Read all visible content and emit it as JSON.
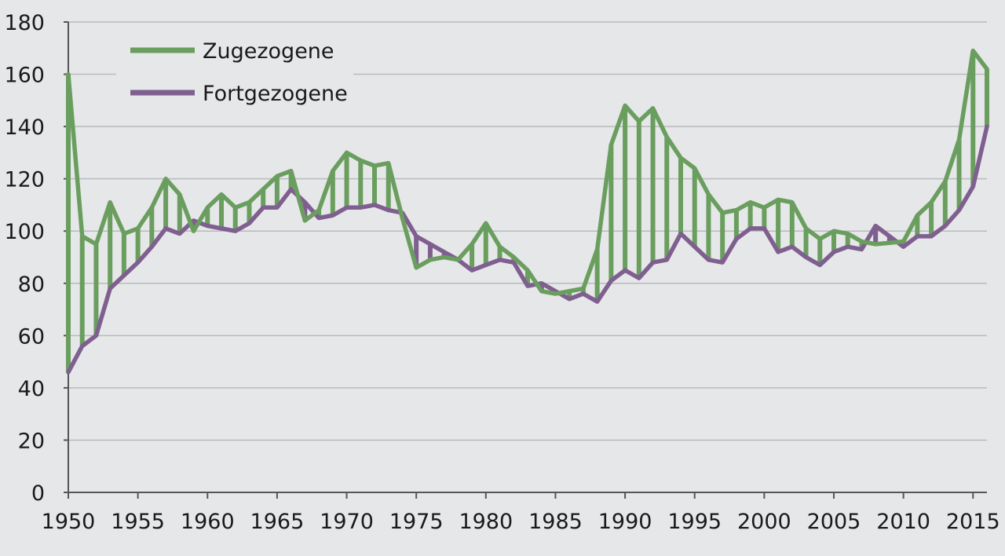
{
  "chart_data": {
    "type": "line",
    "title": "",
    "xlabel": "",
    "ylabel": "",
    "xlim": [
      1950,
      2016
    ],
    "ylim": [
      0,
      180
    ],
    "grid": true,
    "legend_position": "top-left",
    "x_ticks": [
      "1950",
      "1955",
      "1960",
      "1965",
      "1970",
      "1975",
      "1980",
      "1985",
      "1990",
      "1995",
      "2000",
      "2005",
      "2010",
      "2015"
    ],
    "y_ticks": [
      "0",
      "20",
      "40",
      "60",
      "80",
      "100",
      "120",
      "140",
      "160",
      "180"
    ],
    "x": [
      1950,
      1951,
      1952,
      1953,
      1954,
      1955,
      1956,
      1957,
      1958,
      1959,
      1960,
      1961,
      1962,
      1963,
      1964,
      1965,
      1966,
      1967,
      1968,
      1969,
      1970,
      1971,
      1972,
      1973,
      1974,
      1975,
      1976,
      1977,
      1978,
      1979,
      1980,
      1981,
      1982,
      1983,
      1984,
      1985,
      1986,
      1987,
      1988,
      1989,
      1990,
      1991,
      1992,
      1993,
      1994,
      1995,
      1996,
      1997,
      1998,
      1999,
      2000,
      2001,
      2002,
      2003,
      2004,
      2005,
      2006,
      2007,
      2008,
      2009,
      2010,
      2011,
      2012,
      2013,
      2014,
      2015,
      2016
    ],
    "series": [
      {
        "name": "Zugezogene",
        "color": "#6a9e5f",
        "values": [
          160,
          98,
          95,
          111,
          99,
          101,
          109,
          120,
          114,
          100,
          109,
          114,
          109,
          111,
          116,
          121,
          123,
          104,
          108,
          123,
          130,
          127,
          125,
          126,
          105,
          86,
          89,
          90,
          89,
          95,
          103,
          94,
          90,
          85,
          77,
          76,
          77,
          78,
          93,
          133,
          148,
          142,
          147,
          136,
          128,
          124,
          114,
          107,
          108,
          111,
          109,
          112,
          111,
          101,
          97,
          100,
          99,
          96,
          95,
          95.5,
          96,
          106,
          111,
          119,
          135,
          169,
          162
        ]
      },
      {
        "name": "Fortgezogene",
        "color": "#7f5f8f",
        "values": [
          46,
          56,
          60,
          78,
          83,
          88,
          94,
          101,
          99,
          104,
          102,
          101,
          100,
          103,
          109,
          109,
          116,
          111,
          105,
          106,
          109,
          109,
          110,
          108,
          107,
          98,
          95,
          92,
          89,
          85,
          87,
          89,
          88,
          79,
          80,
          77,
          74,
          76,
          73,
          81,
          85,
          82,
          88,
          89,
          99,
          94,
          89,
          88,
          97,
          101,
          101,
          92,
          94,
          90,
          87,
          92,
          94,
          93,
          102,
          98,
          94,
          98,
          98,
          102,
          108,
          117,
          140
        ]
      }
    ]
  }
}
